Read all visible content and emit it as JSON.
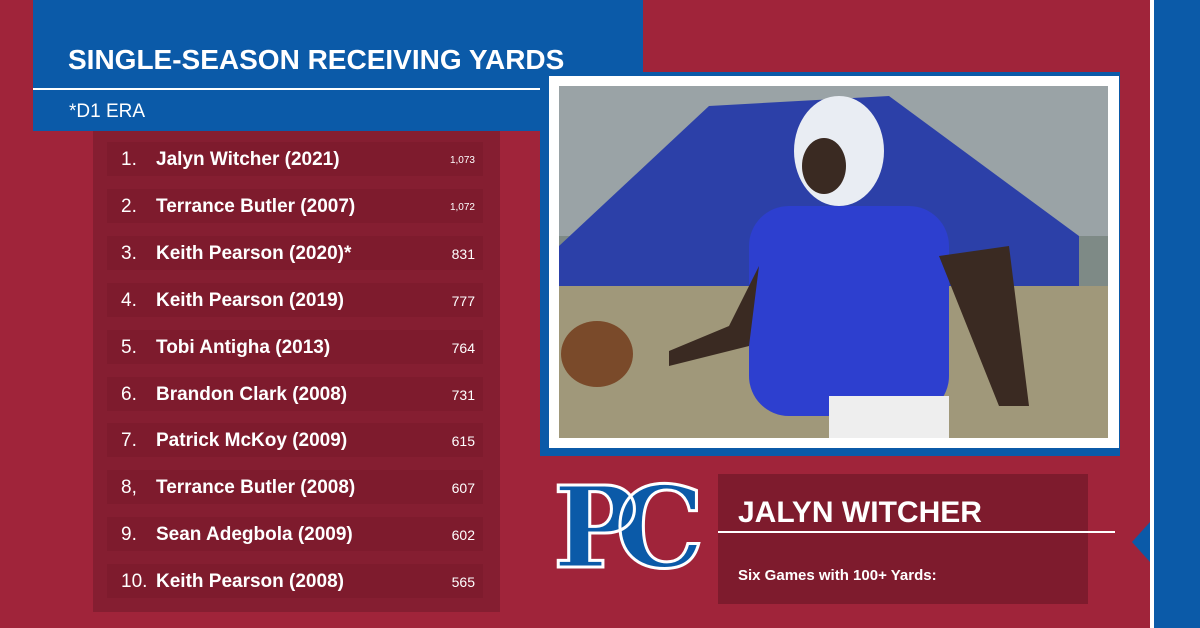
{
  "header": {
    "title": "SINGLE-SEASON RECEIVING YARDS",
    "subtitle": "*D1 ERA"
  },
  "table": {
    "rows": [
      [
        "1.",
        "Jalyn Witcher (2021)",
        "1,073"
      ],
      [
        "2.",
        "Terrance Butler (2007)",
        "1,072"
      ],
      [
        "3.",
        "Keith Pearson (2020)*",
        "831"
      ],
      [
        "4.",
        "Keith Pearson (2019)",
        "777"
      ],
      [
        "5.",
        "Tobi Antigha (2013)",
        "764"
      ],
      [
        "6.",
        "Brandon Clark (2008)",
        "731"
      ],
      [
        "7.",
        "Patrick McKoy (2009)",
        "615"
      ],
      [
        "8,",
        "Terrance Butler (2008)",
        "607"
      ],
      [
        "9.",
        "Sean Adegbola (2009)",
        "602"
      ],
      [
        "10.",
        "Keith Pearson (2008)",
        "565"
      ]
    ]
  },
  "logo": {
    "text": "PC"
  },
  "player": {
    "name": "JALYN WITCHER",
    "caption": "Six Games with 100+ Yards:"
  }
}
